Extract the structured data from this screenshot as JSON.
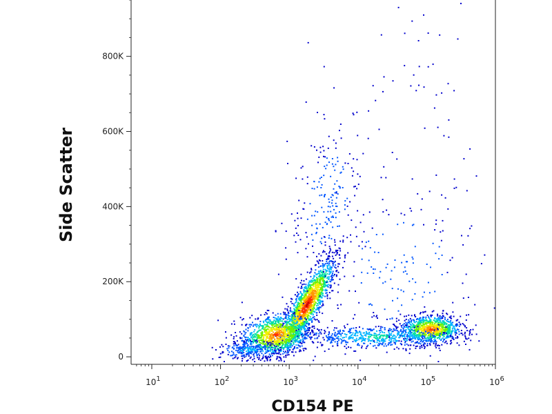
{
  "chart_data": {
    "type": "scatter",
    "subtype": "flow-cytometry-density-dot-plot",
    "title": "",
    "xlabel": "CD154 PE",
    "ylabel": "Side Scatter",
    "x_scale": "log",
    "xlim": [
      5,
      1000000
    ],
    "ylim": [
      -20000,
      950000
    ],
    "x_tick_values": [
      10,
      100,
      1000,
      10000,
      100000,
      1000000
    ],
    "x_ticks": [
      {
        "base": "10",
        "exp": "1"
      },
      {
        "base": "10",
        "exp": "2"
      },
      {
        "base": "10",
        "exp": "3"
      },
      {
        "base": "10",
        "exp": "4"
      },
      {
        "base": "10",
        "exp": "5"
      },
      {
        "base": "10",
        "exp": "6"
      }
    ],
    "y_tick_values": [
      0,
      200000,
      400000,
      600000,
      800000
    ],
    "y_ticks": [
      "0",
      "200K",
      "400K",
      "600K",
      "800K"
    ],
    "grid": false,
    "legend": "none",
    "colormap": [
      "#0000cc",
      "#0055ff",
      "#00b4ff",
      "#00e0a0",
      "#70f000",
      "#f0f000",
      "#ff9900",
      "#ff3300",
      "#cc0000"
    ],
    "populations": [
      {
        "x_center": 1800,
        "y_center": 140000,
        "note": "high-density diagonal cluster"
      },
      {
        "x_center": 600,
        "y_center": 60000,
        "note": "low-CD154 cluster"
      },
      {
        "x_center": 110000,
        "y_center": 75000,
        "note": "CD154 PE positive cluster"
      },
      {
        "x_center": 3500,
        "y_center": 450000,
        "note": "sparse high side-scatter events"
      }
    ]
  }
}
